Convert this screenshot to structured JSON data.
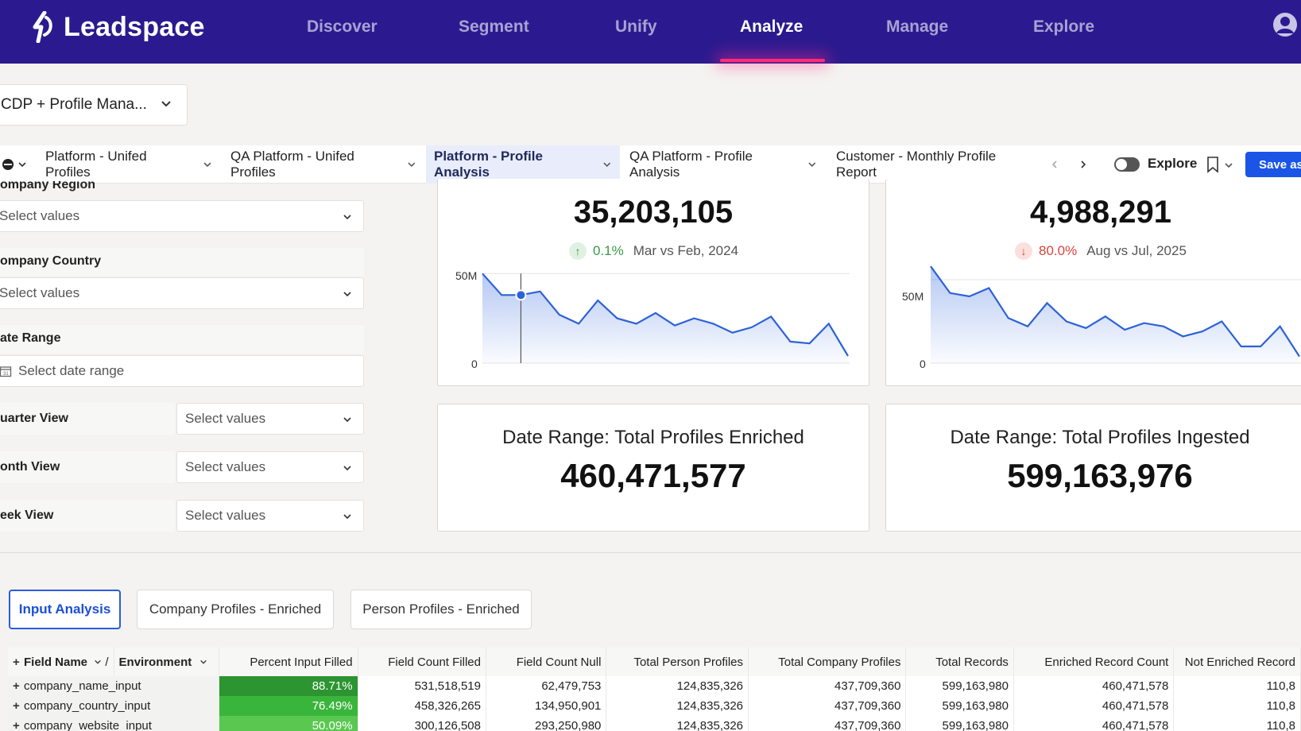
{
  "nav": {
    "logo_text": "Leadspace",
    "items": [
      {
        "label": "Discover",
        "active": false
      },
      {
        "label": "Segment",
        "active": false
      },
      {
        "label": "Unify",
        "active": false
      },
      {
        "label": "Analyze",
        "active": true
      },
      {
        "label": "Manage",
        "active": false
      },
      {
        "label": "Explore",
        "active": false
      }
    ]
  },
  "dashboard_select": {
    "value": "CDP + Profile Mana..."
  },
  "tabs": [
    {
      "label": "Platform - Unifed Profiles",
      "active": false
    },
    {
      "label": "QA Platform - Unifed Profiles",
      "active": false
    },
    {
      "label": "Platform - Profile Analysis",
      "active": true
    },
    {
      "label": "QA Platform - Profile Analysis",
      "active": false
    },
    {
      "label": "Customer - Monthly Profile Report",
      "active": false
    }
  ],
  "toolbar": {
    "explore_label": "Explore",
    "save_label": "Save as"
  },
  "filters": {
    "region": {
      "label": "ompany Region",
      "placeholder": "Select values"
    },
    "country": {
      "label": "ompany Country",
      "placeholder": "Select values"
    },
    "date_range": {
      "label": "ate Range",
      "placeholder": "Select date range"
    },
    "quarter": {
      "label": "uarter View",
      "placeholder": "Select values"
    },
    "month": {
      "label": "onth View",
      "placeholder": "Select values"
    },
    "week": {
      "label": "eek View",
      "placeholder": "Select values"
    }
  },
  "kpi1": {
    "value": "35,203,105",
    "delta": "0.1%",
    "period": "Mar vs Feb, 2024",
    "delta_color": "#3a9a48"
  },
  "kpi2": {
    "value": "4,988,291",
    "delta": "80.0%",
    "period": "Aug vs Jul, 2025",
    "delta_color": "#d9443a"
  },
  "chart_data": [
    {
      "type": "area",
      "y_ticks": [
        "50M",
        "0"
      ],
      "ylim": [
        0,
        55000000
      ],
      "values": [
        50000000,
        38000000,
        38000000,
        40000000,
        27000000,
        22000000,
        35000000,
        25000000,
        22000000,
        28000000,
        21000000,
        25000000,
        22000000,
        17000000,
        20000000,
        26000000,
        12000000,
        11000000,
        22000000,
        4000000
      ]
    },
    {
      "type": "area",
      "y_ticks": [
        "50M",
        "0"
      ],
      "ylim": [
        0,
        60000000
      ],
      "values": [
        58000000,
        42000000,
        40000000,
        45000000,
        27000000,
        22000000,
        36000000,
        25000000,
        21000000,
        28000000,
        20000000,
        24000000,
        22000000,
        16000000,
        19000000,
        25000000,
        10000000,
        10000000,
        22000000,
        4000000
      ]
    }
  ],
  "card3": {
    "title": "Date Range: Total Profiles Enriched",
    "value": "460,471,577"
  },
  "card4": {
    "title": "Date Range: Total Profiles Ingested",
    "value": "599,163,976"
  },
  "subtabs": [
    {
      "label": "Input Analysis",
      "active": true
    },
    {
      "label": "Company Profiles - Enriched",
      "active": false
    },
    {
      "label": "Person Profiles - Enriched",
      "active": false
    }
  ],
  "table": {
    "col_field": "Field Name",
    "col_env": "Environment",
    "columns": [
      "Percent Input Filled",
      "Field Count Filled",
      "Field Count Null",
      "Total Person Profiles",
      "Total Company Profiles",
      "Total Records",
      "Enriched Record Count",
      "Not Enriched Record"
    ],
    "rows": [
      {
        "name": "company_name_input",
        "cells": [
          "88.71%",
          "531,518,519",
          "62,479,753",
          "124,835,326",
          "437,709,360",
          "599,163,980",
          "460,471,578",
          "110,8"
        ],
        "fill": 0.8871
      },
      {
        "name": "company_country_input",
        "cells": [
          "76.49%",
          "458,326,265",
          "134,950,901",
          "124,835,326",
          "437,709,360",
          "599,163,980",
          "460,471,578",
          "110,8"
        ],
        "fill": 0.7649
      },
      {
        "name": "company_website_input",
        "cells": [
          "50.09%",
          "300,126,508",
          "293,250,980",
          "124,835,326",
          "437,709,360",
          "599,163,980",
          "460,471,578",
          "110,8"
        ],
        "fill": 0.5009
      }
    ]
  }
}
